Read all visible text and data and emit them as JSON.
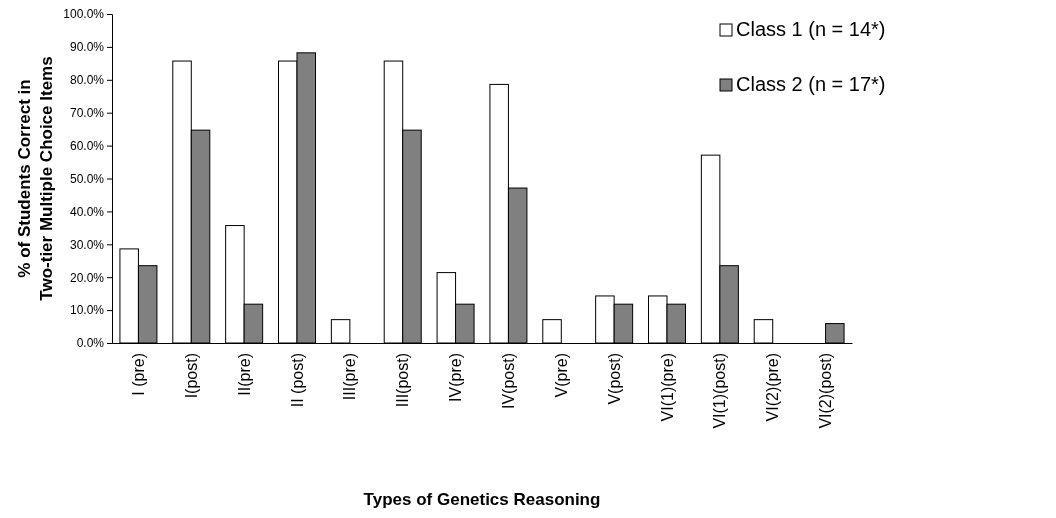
{
  "chart_data": {
    "type": "bar",
    "xlabel": "Types of Genetics Reasoning",
    "ylabel": "% of Students Correct in Two-tier Multiple Choice Items",
    "categories": [
      "I (pre)",
      "I(post)",
      "II(pre)",
      "II (post)",
      "III(pre)",
      "III(post)",
      "IV(pre)",
      "IV(post)",
      "V(pre)",
      "V(post)",
      "VI(1)(pre)",
      "VI(1)(post)",
      "VI(2)(pre)",
      "VI(2)(post)"
    ],
    "series": [
      {
        "name": "Class 1 (n  = 14*)",
        "color": "#ffffff",
        "values": [
          28.6,
          85.7,
          35.7,
          85.7,
          7.1,
          85.7,
          21.4,
          78.6,
          7.1,
          14.3,
          14.3,
          57.1,
          7.1,
          0
        ]
      },
      {
        "name": "Class 2 (n = 17*)",
        "color": "#808080",
        "values": [
          23.5,
          64.7,
          11.8,
          88.2,
          0,
          64.7,
          11.8,
          47.1,
          0,
          11.8,
          11.8,
          23.5,
          0,
          5.9
        ]
      }
    ],
    "ylim": [
      0,
      100
    ],
    "yticks": [
      {
        "value": 0,
        "label": "0.0%"
      },
      {
        "value": 10,
        "label": "10.0%"
      },
      {
        "value": 20,
        "label": "20.0%"
      },
      {
        "value": 30,
        "label": "30.0%"
      },
      {
        "value": 40,
        "label": "40.0%"
      },
      {
        "value": 50,
        "label": "50.0%"
      },
      {
        "value": 60,
        "label": "60.0%"
      },
      {
        "value": 70,
        "label": "70.0%"
      },
      {
        "value": 80,
        "label": "80.0%"
      },
      {
        "value": 90,
        "label": "90.0%"
      },
      {
        "value": 100,
        "label": "100.0%"
      }
    ],
    "legend": "top right",
    "grid": false
  }
}
